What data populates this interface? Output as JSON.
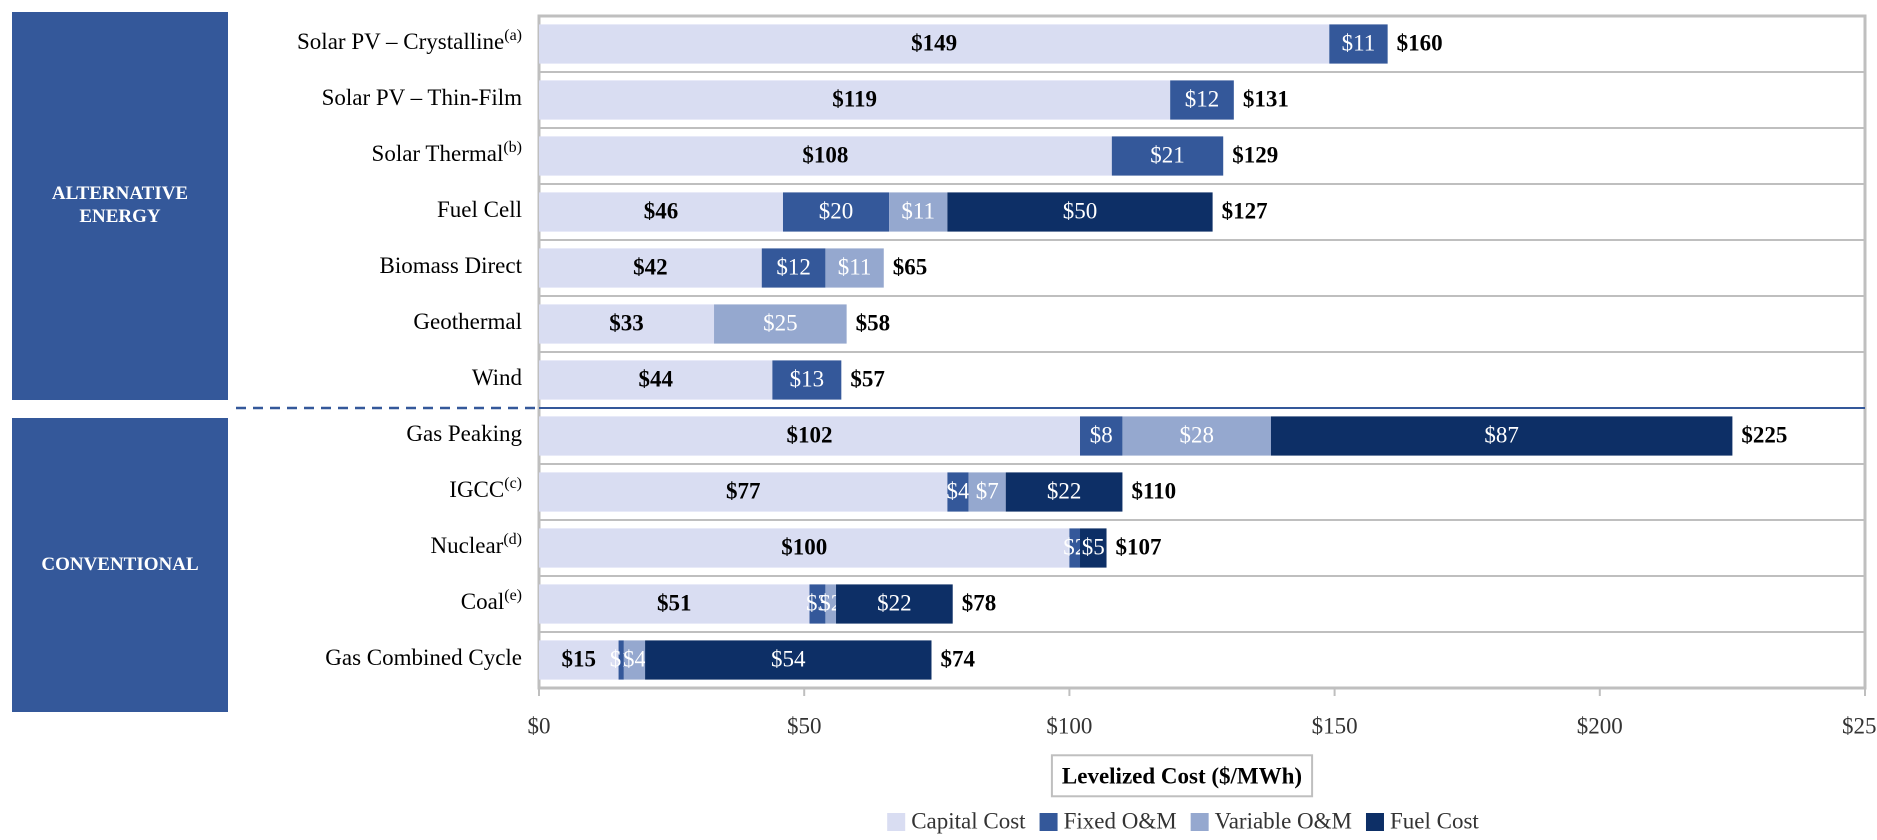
{
  "chart_data": {
    "type": "stacked-bar-horizontal",
    "categories": [
      "Solar PV – Crystalline",
      "Solar PV – Thin-Film",
      "Solar Thermal",
      "Fuel Cell",
      "Biomass Direct",
      "Geothermal",
      "Wind",
      "Gas Peaking",
      "IGCC",
      "Nuclear",
      "Coal",
      "Gas Combined Cycle"
    ],
    "category_notes": [
      "(a)",
      null,
      "(b)",
      null,
      null,
      null,
      null,
      null,
      "(c)",
      "(d)",
      "(e)",
      null
    ],
    "groups": [
      {
        "label": "ALTERNATIVE ENERGY",
        "count": 7
      },
      {
        "label": "CONVENTIONAL",
        "count": 5
      }
    ],
    "series": [
      {
        "name": "Capital Cost",
        "color": "#d9ddf2",
        "label_color": "#000000",
        "values": [
          149,
          119,
          108,
          46,
          42,
          33,
          44,
          102,
          77,
          100,
          51,
          15
        ],
        "value_labels": [
          "$149",
          "$119",
          "$108",
          "$46",
          "$42",
          "$33",
          "$44",
          "$102",
          "$77",
          "$100",
          "$51",
          "$15"
        ]
      },
      {
        "name": "Fixed O&M",
        "color": "#34589a",
        "label_color": "#ffffff",
        "values": [
          11,
          12,
          21,
          20,
          12,
          null,
          13,
          8,
          4,
          2,
          3,
          1
        ],
        "value_labels": [
          "$11",
          "$12",
          "$21",
          "$20",
          "$12",
          null,
          "$13",
          "$8",
          "$4",
          "$2",
          "$3",
          "$1"
        ]
      },
      {
        "name": "Variable O&M",
        "color": "#95a8cf",
        "label_color": "#ffffff",
        "values": [
          null,
          null,
          null,
          11,
          11,
          25,
          null,
          28,
          7,
          null,
          2,
          4
        ],
        "value_labels": [
          null,
          null,
          null,
          "$11",
          "$11",
          "$25",
          null,
          "$28",
          "$7",
          null,
          "$2",
          "$4"
        ]
      },
      {
        "name": "Fuel Cost",
        "color": "#0d2f66",
        "label_color": "#ffffff",
        "values": [
          null,
          null,
          null,
          50,
          null,
          null,
          null,
          87,
          22,
          5,
          22,
          54
        ],
        "value_labels": [
          null,
          null,
          null,
          "$50",
          null,
          null,
          null,
          "$87",
          "$22",
          "$5",
          "$22",
          "$54"
        ]
      }
    ],
    "totals": [
      160,
      131,
      129,
      127,
      65,
      58,
      57,
      225,
      110,
      107,
      78,
      74
    ],
    "total_labels": [
      "$160",
      "$131",
      "$129",
      "$127",
      "$65",
      "$58",
      "$57",
      "$225",
      "$110",
      "$107",
      "$78",
      "$74"
    ],
    "xlabel": "Levelized Cost ($/MWh)",
    "xlim": [
      0,
      250
    ],
    "xticks": [
      {
        "value": 0,
        "label": "$0"
      },
      {
        "value": 50,
        "label": "$50"
      },
      {
        "value": 100,
        "label": "$100"
      },
      {
        "value": 150,
        "label": "$150"
      },
      {
        "value": 200,
        "label": "$200"
      },
      {
        "value": 250,
        "label": "$250"
      }
    ],
    "legend": "bottom"
  }
}
